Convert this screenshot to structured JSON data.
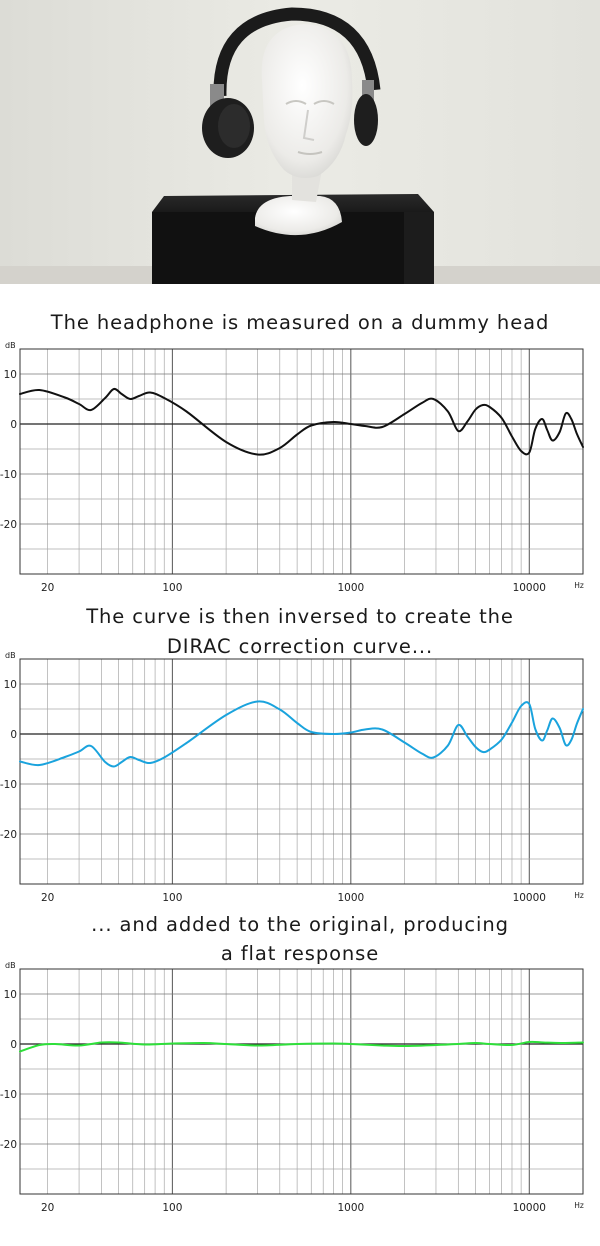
{
  "photo": {
    "alt": "Headphones on a foam dummy head on a black stand"
  },
  "captions": [
    "The headphone is measured on a dummy head",
    "The curve is then inversed to create the",
    "DIRAC correction curve...",
    "... and added to the original, producing",
    "a flat response"
  ],
  "chart_data": [
    {
      "type": "line",
      "ylabel": "dB",
      "xscale": "log",
      "xlim": [
        14,
        20000
      ],
      "ylim": [
        -30,
        15
      ],
      "yticks": [
        10,
        0,
        -10,
        -20
      ],
      "ytick_labels": [
        "10",
        "0",
        "-10",
        "-20"
      ],
      "xticks": [
        20,
        100,
        1000,
        10000
      ],
      "xtick_labels": [
        "20",
        "100",
        "1000",
        "10000"
      ],
      "xunit": "Hz",
      "grid": true,
      "series": [
        {
          "color": "#111111",
          "x": [
            14,
            18,
            25,
            30,
            35,
            42,
            47,
            52,
            58,
            65,
            75,
            90,
            120,
            200,
            300,
            400,
            500,
            600,
            800,
            1000,
            1200,
            1500,
            2000,
            2500,
            2900,
            3500,
            4000,
            4500,
            5000,
            5500,
            6000,
            7000,
            8000,
            9000,
            10000,
            10800,
            11800,
            12600,
            13500,
            14800,
            16000,
            17200,
            18500,
            20000
          ],
          "y": [
            6,
            6.8,
            5.3,
            4,
            2.8,
            5.2,
            7,
            6,
            5,
            5.6,
            6.3,
            5.2,
            2.5,
            -3.6,
            -6.1,
            -4.8,
            -2.1,
            -0.3,
            0.4,
            0,
            -0.4,
            -0.6,
            2,
            4.2,
            5,
            2.5,
            -1.4,
            0.5,
            2.9,
            3.8,
            3.4,
            1.2,
            -2.5,
            -5.4,
            -5.7,
            -1,
            1,
            -1.2,
            -3.3,
            -1.6,
            2.1,
            1,
            -2,
            -4.6
          ]
        }
      ]
    },
    {
      "type": "line",
      "ylabel": "dB",
      "xscale": "log",
      "xlim": [
        14,
        20000
      ],
      "ylim": [
        -30,
        15
      ],
      "yticks": [
        10,
        0,
        -10,
        -20
      ],
      "ytick_labels": [
        "10",
        "0",
        "-10",
        "-20"
      ],
      "xticks": [
        20,
        100,
        1000,
        10000
      ],
      "xtick_labels": [
        "20",
        "100",
        "1000",
        "10000"
      ],
      "xunit": "Hz",
      "grid": true,
      "series": [
        {
          "color": "#1aa3dd",
          "x": [
            14,
            18,
            25,
            30,
            35,
            42,
            47,
            52,
            58,
            65,
            75,
            90,
            120,
            200,
            300,
            400,
            500,
            600,
            800,
            1000,
            1200,
            1500,
            2000,
            2500,
            2900,
            3500,
            4000,
            4500,
            5000,
            5500,
            6000,
            7000,
            8000,
            9000,
            10000,
            10800,
            11800,
            12600,
            13500,
            14800,
            16000,
            17200,
            18500,
            20000
          ],
          "y": [
            -5.5,
            -6.2,
            -4.6,
            -3.5,
            -2.4,
            -5.6,
            -6.5,
            -5.6,
            -4.6,
            -5.2,
            -5.8,
            -4.7,
            -1.8,
            3.8,
            6.5,
            4.9,
            2.2,
            0.4,
            0,
            0.3,
            0.9,
            0.9,
            -1.7,
            -3.9,
            -4.7,
            -2.3,
            1.8,
            -0.5,
            -2.6,
            -3.6,
            -3.1,
            -1.1,
            2.3,
            5.6,
            6,
            1,
            -1.3,
            0.7,
            3.1,
            1.2,
            -2.2,
            -1.2,
            2.1,
            5
          ]
        }
      ]
    },
    {
      "type": "line",
      "ylabel": "dB",
      "xscale": "log",
      "xlim": [
        14,
        20000
      ],
      "ylim": [
        -30,
        15
      ],
      "yticks": [
        10,
        0,
        -10,
        -20
      ],
      "ytick_labels": [
        "10",
        "0",
        "-10",
        "-20"
      ],
      "xticks": [
        20,
        100,
        1000,
        10000
      ],
      "xtick_labels": [
        "20",
        "100",
        "1000",
        "10000"
      ],
      "xunit": "Hz",
      "grid": true,
      "series": [
        {
          "color": "#2ee03a",
          "x": [
            14,
            18,
            22,
            30,
            40,
            50,
            70,
            100,
            150,
            200,
            300,
            500,
            800,
            1000,
            1500,
            2000,
            3000,
            4000,
            5000,
            6000,
            8000,
            10000,
            12000,
            15000,
            20000
          ],
          "y": [
            -1.5,
            -0.2,
            0,
            -0.3,
            0.3,
            0.3,
            -0.1,
            0.1,
            0.2,
            0,
            -0.3,
            0,
            0.1,
            0,
            -0.3,
            -0.4,
            -0.2,
            0,
            0.2,
            0,
            -0.2,
            0.4,
            0.3,
            0.2,
            0.3
          ]
        }
      ]
    }
  ]
}
